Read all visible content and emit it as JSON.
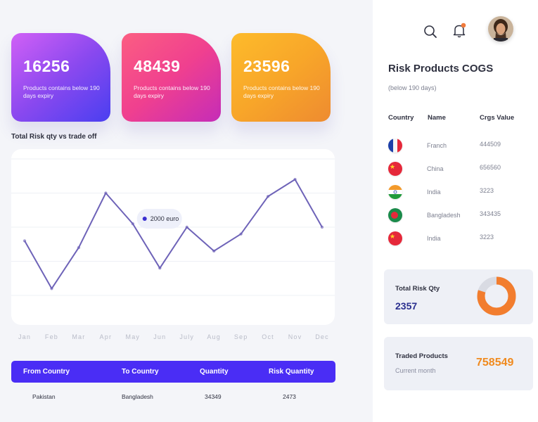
{
  "cards": [
    {
      "value": "16256",
      "subtitle": "Products contains below 190 days expiry"
    },
    {
      "value": "48439",
      "subtitle": "Products contains below 190 days expiry"
    },
    {
      "value": "23596",
      "subtitle": "Products contains below 190 days expiry"
    }
  ],
  "chart_title": "Total Risk qty vs trade off",
  "chart_data": {
    "type": "line",
    "categories": [
      "Jan",
      "Feb",
      "Mar",
      "Apr",
      "May",
      "Jun",
      "July",
      "Aug",
      "Sep",
      "Oct",
      "Nov",
      "Dec"
    ],
    "series": [
      {
        "values": [
          1800,
          1100,
          1700,
          2500,
          2050,
          1400,
          2000,
          1650,
          1900,
          2450,
          2700,
          2000
        ]
      }
    ],
    "tooltip": {
      "label": "2000 euro",
      "category": "July"
    },
    "ylim": [
      1000,
      3000
    ],
    "grid": true,
    "xlabel": "",
    "ylabel": ""
  },
  "table": {
    "headers": [
      "From Country",
      "To Country",
      "Quantity",
      "Risk Quantity"
    ],
    "rows": [
      [
        "Pakistan",
        "Bangladesh",
        "34349",
        "2473"
      ]
    ]
  },
  "side": {
    "title": "Risk Products COGS",
    "subtitle": "(below 190 days)",
    "headers": [
      "Country",
      "Name",
      "Crgs Value"
    ],
    "rows": [
      {
        "flag": "france-flag",
        "name": "Franch",
        "value": "444509"
      },
      {
        "flag": "china-flag",
        "name": "China",
        "value": "656560"
      },
      {
        "flag": "india-flag",
        "name": "India",
        "value": "3223"
      },
      {
        "flag": "bangladesh-flag",
        "name": "Bangladesh",
        "value": "343435"
      },
      {
        "flag": "china-flag",
        "name": "India",
        "value": "3223"
      }
    ],
    "total_risk": {
      "label": "Total Risk Qty",
      "value": "2357",
      "ring_fraction": 0.8
    },
    "traded": {
      "label": "Traded Products",
      "sub": "Current month",
      "value": "758549"
    }
  },
  "colors": {
    "accent": "#4a2df5",
    "orange": "#f27d2e",
    "line": "#6e63b8",
    "notify": "#f07a3c"
  },
  "icons": [
    "search-icon",
    "bell-icon",
    "avatar"
  ]
}
